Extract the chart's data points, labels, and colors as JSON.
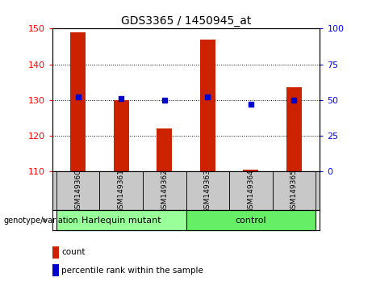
{
  "title": "GDS3365 / 1450945_at",
  "samples": [
    "GSM149360",
    "GSM149361",
    "GSM149362",
    "GSM149363",
    "GSM149364",
    "GSM149365"
  ],
  "count_values": [
    149.0,
    130.0,
    122.0,
    147.0,
    110.5,
    133.5
  ],
  "percentile_values": [
    52,
    51,
    50,
    52,
    47,
    50
  ],
  "ylim_left": [
    110,
    150
  ],
  "ylim_right": [
    0,
    100
  ],
  "yticks_left": [
    110,
    120,
    130,
    140,
    150
  ],
  "yticks_right": [
    0,
    25,
    50,
    75,
    100
  ],
  "grid_values": [
    120,
    130,
    140
  ],
  "bar_color": "#cc2200",
  "dot_color": "#0000cc",
  "groups": [
    {
      "label": "Harlequin mutant",
      "n": 3,
      "color": "#99ff99"
    },
    {
      "label": "control",
      "n": 3,
      "color": "#66ee66"
    }
  ],
  "xlabel_bottom": "genotype/variation",
  "legend_count_label": "count",
  "legend_pct_label": "percentile rank within the sample",
  "sample_bg_color": "#c8c8c8",
  "plot_bg": "#ffffff",
  "bar_width": 0.35
}
